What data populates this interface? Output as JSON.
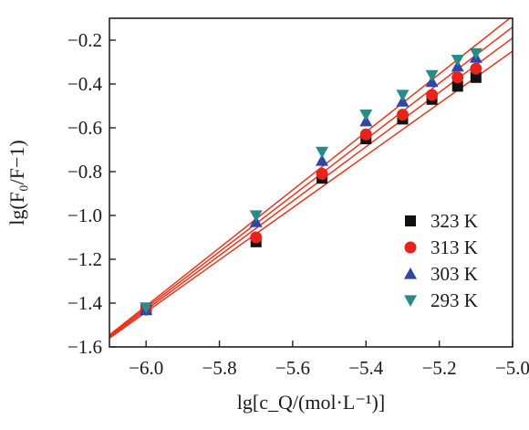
{
  "chart_data": {
    "type": "scatter",
    "xlabel": "lg[c_Q/(mol·L⁻¹)]",
    "ylabel": "lg(F₀/F−1)",
    "xlim": [
      -6.1,
      -5.0
    ],
    "ylim": [
      -1.6,
      -0.1
    ],
    "x_ticks": [
      -6.0,
      -5.8,
      -5.6,
      -5.4,
      -5.2,
      -5.0
    ],
    "x_tick_labels": [
      "−6.0",
      "−5.8",
      "−5.6",
      "−5.4",
      "−5.2",
      "−5.0"
    ],
    "y_ticks": [
      -0.2,
      -0.4,
      -0.6,
      -0.8,
      -1.0,
      -1.2,
      -1.4,
      -1.6
    ],
    "y_tick_labels": [
      "−0.2",
      "−0.4",
      "−0.6",
      "−0.8",
      "−1.0",
      "−1.2",
      "−1.4",
      "−1.6"
    ],
    "legend_position": "bottom-right",
    "grid": false,
    "fit_line_color": "#e8341c",
    "series": [
      {
        "name": "323 K",
        "marker": "square",
        "color": "#111111",
        "x": [
          -6.0,
          -5.7,
          -5.52,
          -5.4,
          -5.3,
          -5.22,
          -5.15,
          -5.1
        ],
        "y": [
          -1.43,
          -1.12,
          -0.83,
          -0.65,
          -0.56,
          -0.47,
          -0.41,
          -0.37
        ],
        "fit": [
          [
            -6.1,
            -1.56
          ],
          [
            -5.0,
            -0.25
          ]
        ]
      },
      {
        "name": "313 K",
        "marker": "circle",
        "color": "#e8231c",
        "x": [
          -6.0,
          -5.7,
          -5.52,
          -5.4,
          -5.3,
          -5.22,
          -5.15,
          -5.1
        ],
        "y": [
          -1.43,
          -1.1,
          -0.81,
          -0.63,
          -0.54,
          -0.45,
          -0.37,
          -0.33
        ],
        "fit": [
          [
            -6.1,
            -1.555
          ],
          [
            -5.0,
            -0.19
          ]
        ]
      },
      {
        "name": "303 K",
        "marker": "triangle-up",
        "color": "#2f46a6",
        "x": [
          -6.0,
          -5.7,
          -5.52,
          -5.4,
          -5.3,
          -5.22,
          -5.15,
          -5.1
        ],
        "y": [
          -1.43,
          -1.03,
          -0.75,
          -0.57,
          -0.48,
          -0.39,
          -0.32,
          -0.28
        ],
        "fit": [
          [
            -6.1,
            -1.55
          ],
          [
            -5.0,
            -0.14
          ]
        ]
      },
      {
        "name": "293 K",
        "marker": "triangle-down",
        "color": "#2a8a8a",
        "x": [
          -6.0,
          -5.7,
          -5.52,
          -5.4,
          -5.3,
          -5.22,
          -5.15,
          -5.1
        ],
        "y": [
          -1.42,
          -1.0,
          -0.71,
          -0.54,
          -0.45,
          -0.36,
          -0.29,
          -0.26
        ],
        "fit": [
          [
            -6.1,
            -1.545
          ],
          [
            -5.0,
            -0.09
          ]
        ]
      }
    ]
  }
}
